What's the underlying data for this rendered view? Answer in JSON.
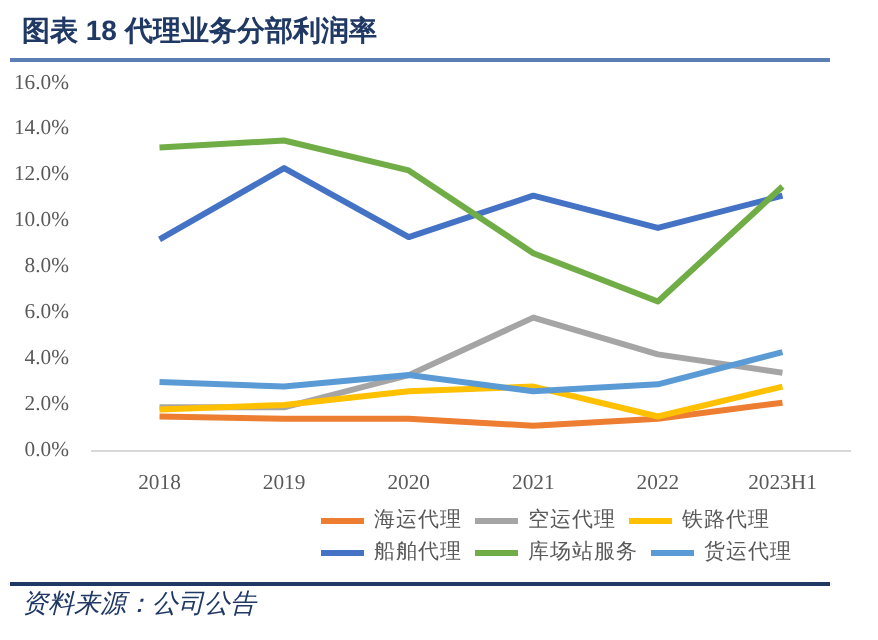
{
  "chart_data": {
    "type": "line",
    "title": "图表 18    代理业务分部利润率",
    "categories": [
      "2018",
      "2019",
      "2020",
      "2021",
      "2022",
      "2023H1"
    ],
    "series": [
      {
        "name": "海运代理",
        "color": "#ed7d31",
        "values": [
          1.5,
          1.4,
          1.4,
          1.1,
          1.4,
          2.1
        ]
      },
      {
        "name": "空运代理",
        "color": "#a5a5a5",
        "values": [
          1.9,
          1.9,
          3.3,
          5.8,
          4.2,
          3.4
        ]
      },
      {
        "name": "铁路代理",
        "color": "#ffc000",
        "values": [
          1.8,
          2.0,
          2.6,
          2.8,
          1.5,
          2.8
        ]
      },
      {
        "name": "船舶代理",
        "color": "#4472c4",
        "values": [
          9.2,
          12.3,
          9.3,
          11.1,
          9.7,
          11.1
        ]
      },
      {
        "name": "库场站服务",
        "color": "#70ad47",
        "values": [
          13.2,
          13.5,
          12.2,
          8.6,
          6.5,
          11.5
        ]
      },
      {
        "name": "货运代理",
        "color": "#5b9bd5",
        "values": [
          3.0,
          2.8,
          3.3,
          2.6,
          2.9,
          4.3
        ]
      }
    ],
    "ylim": [
      0,
      16
    ],
    "yticks": [
      {
        "value": 0,
        "label": "0.0%"
      },
      {
        "value": 2,
        "label": "2.0%"
      },
      {
        "value": 4,
        "label": "4.0%"
      },
      {
        "value": 6,
        "label": "6.0%"
      },
      {
        "value": 8,
        "label": "8.0%"
      },
      {
        "value": 10,
        "label": "10.0%"
      },
      {
        "value": 12,
        "label": "12.0%"
      },
      {
        "value": 14,
        "label": "14.0%"
      },
      {
        "value": 16,
        "label": "16.0%"
      }
    ],
    "grid": false,
    "legend": "bottom",
    "marker": "none",
    "line_style": "solid",
    "annotations": [
      "资料来源：公司公告"
    ]
  }
}
